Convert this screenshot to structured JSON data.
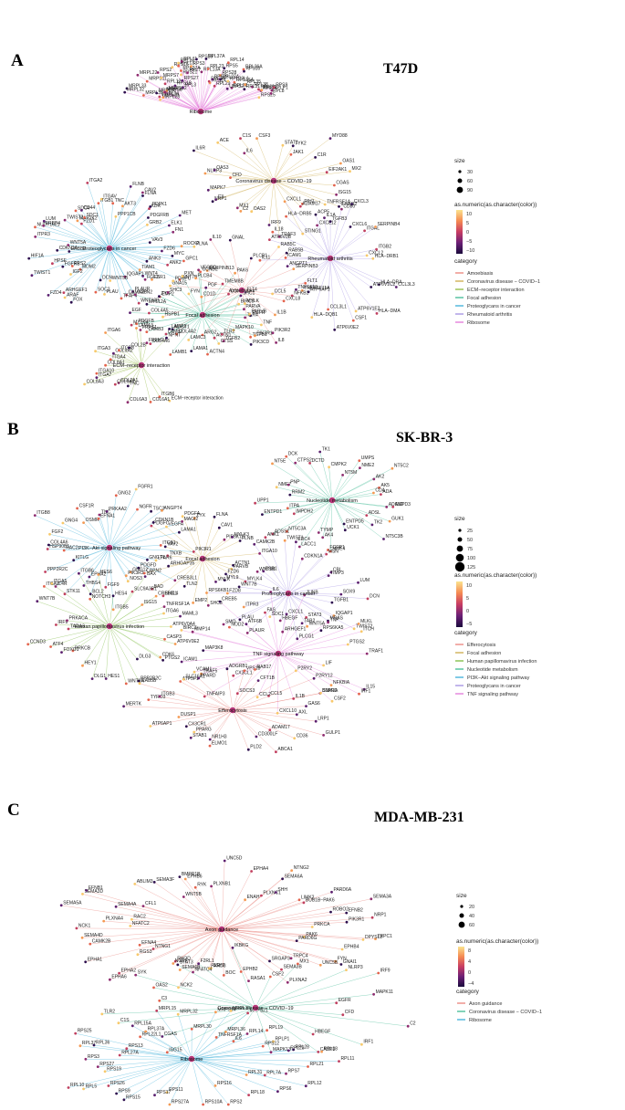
{
  "panels": [
    {
      "letter": "A",
      "title": "T47D",
      "legend": {
        "size_title": "size",
        "size_values": [
          "30",
          "60",
          "90"
        ],
        "color_title": "as.numeric(as.character(color))",
        "color_ticks": [
          "10",
          "5",
          "0",
          "−5",
          "−10"
        ],
        "category_title": "category",
        "categories": [
          {
            "label": "Amoebiasis",
            "color": "#e8776f"
          },
          {
            "label": "Coronavirus disease − COVID−1",
            "color": "#c8a43a"
          },
          {
            "label": "ECM−receptor interaction",
            "color": "#86b32d"
          },
          {
            "label": "Focal adhesion",
            "color": "#2fb58a"
          },
          {
            "label": "Proteoglycans in cancer",
            "color": "#2aa7d5"
          },
          {
            "label": "Rheumatoid arthritis",
            "color": "#9a86e0"
          },
          {
            "label": "Ribosome",
            "color": "#e06ad6"
          }
        ]
      },
      "hubs": [
        {
          "label": "Ribosome",
          "color": "#e06ad6",
          "genes": [
            "MRPL33",
            "MRPL32",
            "MRPL35",
            "MRPL23",
            "MRPL36",
            "RPS21",
            "MRPL30",
            "MRPS12",
            "MRPS6",
            "MRPS11",
            "MRPL3",
            "MRPL22",
            "MRPS7",
            "RPL12",
            "RPS2",
            "RPS18",
            "RPL3",
            "RPS16",
            "RPL13",
            "RPS21",
            "RPS27",
            "RPS27A",
            "RPL10",
            "RPL7",
            "RPL11",
            "RPL13A",
            "RPS3",
            "RPS19",
            "RPL23",
            "RPS14",
            "RPL37A",
            "RPS28",
            "RPL29",
            "RPL34",
            "RPS23",
            "RPS5",
            "RPL14",
            "RPL27A",
            "RPL22L1",
            "RPS15A",
            "RPL36A",
            "RPL32",
            "RPS10",
            "UBA52",
            "RPL38",
            "RPL35",
            "RPL31",
            "RPL30",
            "RPL24",
            "RPLP1",
            "RPL21",
            "RPS25",
            "RPL8",
            "RPS9"
          ]
        },
        {
          "label": "Coronavirus disease − COVID−19",
          "color": "#c8a43a",
          "genes": [
            "CGAS",
            "ISG15",
            "IFNAR2",
            "TNFRSF1A",
            "PIH1",
            "ADAM17",
            "STING1",
            "TRAF3",
            "IRF9",
            "OAS2",
            "C2",
            "MX1",
            "NRP1",
            "C3",
            "MAPK7",
            "CFD",
            "NLRP3",
            "OAS3",
            "IL6R",
            "ACE",
            "IL6",
            "C1S",
            "CSF3",
            "STAT1",
            "TYK2",
            "JAK1",
            "MYD88",
            "C1R",
            "OAS1",
            "EIF2AK1",
            "MX2"
          ]
        },
        {
          "label": "Proteoglycans in cancer",
          "color": "#2aa7d5",
          "genes": [
            "FZD6",
            "MYC",
            "GPC1",
            "ANK2",
            "ANK3",
            "WNT7B",
            "ESR1",
            "TIAM1",
            "WNT4",
            "FGF2",
            "WNT10B",
            "IQGAP1",
            "PLAUR",
            "CAMK2D",
            "TFAP4",
            "WNT5B",
            "PLAU",
            "DCN",
            "SOC2",
            "FOX",
            "ARAF",
            "ARHGEF1",
            "FZD4",
            "MDM2",
            "IGF2",
            "FRS2",
            "TWIST1",
            "FGFR1",
            "HPSE",
            "HIF1A",
            "ERBB3",
            "CDKN1A",
            "WNT5A",
            "ITPR3",
            "NUDT16L1",
            "ERBB4",
            "LUM",
            "TWIST2",
            "FZD1",
            "MAP2K2",
            "SDC1",
            "SDC4",
            "CD44",
            "ITGB1",
            "ITGA2",
            "ITGAV",
            "TNC",
            "PPP1CB",
            "FLNB",
            "AKT3",
            "CAV2",
            "FLNA",
            "KDR",
            "PDPK1",
            "PDGFRB",
            "GRB2",
            "ELK1",
            "MET",
            "FN1",
            "VAV3",
            "ROCK2",
            "PLNA"
          ]
        },
        {
          "label": "Rheumatoid arthritis",
          "color": "#9a86e0",
          "genes": [
            "HLA−DRB1",
            "CCL3L3",
            "HLA−DRA",
            "ATP6V1C2",
            "HLA−DMA",
            "ATP6V1E2",
            "CSF1",
            "ATP6V0E2",
            "CCL3L1",
            "HLA−DQB1",
            "ATP6AP1",
            "TNFRSF11A",
            "TNFSF13",
            "CCL5",
            "ANGPT1",
            "IL11",
            "ICAM1",
            "ATP6V0B",
            "IL18",
            "HLA−DRB5",
            "CXCL1",
            "CXCL12",
            "ACP5",
            "IL1A",
            "TGFB3",
            "CD80",
            "CXCL3",
            "CXCL6",
            "ITGAL",
            "SERPINB4",
            "ITGB2",
            "CXCL2"
          ]
        },
        {
          "label": "Amoebiasis",
          "color": "#e8776f",
          "genes": [
            "NFKB1",
            "CXCL8",
            "IL1B",
            "IL8",
            "TGFB1",
            "TGFB2",
            "ARG2",
            "ADCY1",
            "HSPB1",
            "CD1D",
            "GNA15",
            "PLCB4",
            "SERPINB13",
            "IL10",
            "GNAL",
            "PLCB1",
            "RAB5C",
            "RAB5B",
            "SERPINB3",
            "FLT1"
          ]
        },
        {
          "label": "Focal adhesion",
          "color": "#2fb58a",
          "genes": [
            "EGFR",
            "TLR4",
            "TNF",
            "PIK3R2",
            "PIK3R1",
            "MAPK10",
            "PIK3CD",
            "TLR2",
            "CTSS",
            "ACTN1",
            "ACTN4",
            "LAMA1",
            "LAMC3",
            "LAMB1",
            "COL4A2",
            "LAMB2",
            "COL4A6",
            "LAMA2",
            "LAMB3",
            "PDGFB",
            "MYLK4",
            "COL4A5",
            "EGF",
            "MYL12A",
            "CAPN2",
            "EMP2",
            "ZYX",
            "SHC3",
            "PDGFC",
            "PXN",
            "FYN",
            "VEGFC",
            "CCND2",
            "PGF",
            "TMEM8B",
            "PAK6",
            "CCND1",
            "FLT4",
            "SHC1",
            "BIRC3",
            "MYLK",
            "PARVA",
            "PARVB"
          ]
        },
        {
          "label": "ECM−receptor interaction",
          "color": "#86b32d",
          "genes": [
            "ECM−receptor interaction",
            "ITGB6",
            "COL6A1",
            "COL6A3",
            "TNC",
            "COL2A1",
            "COL6A2",
            "COL8A3",
            "ITGA7",
            "ITGA10",
            "COL8A1",
            "ITGA4",
            "ITGA3",
            "COL9A2",
            "ITGB8",
            "ITGA6",
            "COL2B",
            "LAMA3",
            "FRAS1",
            "FREM2",
            "NPNT"
          ]
        }
      ]
    },
    {
      "letter": "B",
      "title": "SK-BR-3",
      "legend": {
        "size_title": "size",
        "size_values": [
          "25",
          "50",
          "75",
          "100",
          "125"
        ],
        "color_title": "as.numeric(as.character(color))",
        "color_ticks": [
          "10",
          "5",
          "0",
          "−5"
        ],
        "category_title": "category",
        "categories": [
          {
            "label": "Efferocytosis",
            "color": "#e8776f"
          },
          {
            "label": "Focal adhesion",
            "color": "#c8a43a"
          },
          {
            "label": "Human papillomavirus infection",
            "color": "#6fb52d"
          },
          {
            "label": "Nucleotide metabolism",
            "color": "#2fb58a"
          },
          {
            "label": "PI3K−Akt signaling pathway",
            "color": "#2aa7d5"
          },
          {
            "label": "Proteoglycans in cancer",
            "color": "#9a86e0"
          },
          {
            "label": "TNF signaling pathway",
            "color": "#e06ad6"
          }
        ]
      },
      "hubs": [
        {
          "label": "Nucleotide metabolism",
          "color": "#2fb58a",
          "genes": [
            "ADSS2",
            "AMPD3",
            "GUK1",
            "ADSL",
            "TK2",
            "NT5C3B",
            "ENTPD5",
            "UCK1",
            "NME4",
            "AK4",
            "TYMP",
            "LACC1",
            "NT5C3A",
            "ADSS1",
            "IMPDH2",
            "ENTPD1",
            "ITPA",
            "UPP1",
            "RRM2",
            "NME7",
            "PNP",
            "NT5E",
            "DCK",
            "CTPS2",
            "DCTD",
            "TK1",
            "CMPK2",
            "NT5M",
            "UMPS",
            "NME2",
            "NT5C2",
            "AK2",
            "AK5",
            "CDA",
            "ADA"
          ]
        },
        {
          "label": "Focal adhesion",
          "color": "#c8a43a",
          "genes": [
            "ACTN1",
            "PARVB",
            "MYLK4",
            "MYL9",
            "MYLK",
            "SHC3",
            "EMP2",
            "TLN2",
            "SHC1",
            "BAD",
            "CAPN2",
            "ARHGAP35",
            "TNXB",
            "VAV2",
            "PDGFC",
            "VEGFA",
            "PDGFA",
            "ZYX",
            "FLNA",
            "CAV1",
            "PIP5K1B",
            "MYLK3",
            "FLNB",
            "ITGA10"
          ]
        },
        {
          "label": "PI3K−Akt signaling pathway",
          "color": "#2aa7d5",
          "genes": [
            "PIK3R1",
            "LPAR6",
            "GNGT1",
            "CREB3L1",
            "PDGFD",
            "GNG12",
            "NOS3",
            "PIK3R3",
            "ITGB5",
            "FGF9",
            "BCL2",
            "EPHA2",
            "THBS4",
            "STK11",
            "IL4R",
            "PPP2R2C",
            "KITLG",
            "RAC2",
            "HSP90B1",
            "COL4A6",
            "FGF2",
            "ITGB8",
            "GNG4",
            "OSMR",
            "CSF1R",
            "EFNA1",
            "TNC",
            "PRKAA2",
            "GNG2",
            "FGFR1",
            "NGFR",
            "TSC2",
            "ANGPT4",
            "CDKN1B",
            "MAGI2",
            "LAMA1",
            "ITGB1"
          ]
        },
        {
          "label": "Proteoglycans in cancer",
          "color": "#9a86e0",
          "genes": [
            "DCN",
            "TGFB1",
            "IQGAP1",
            "TWIST2",
            "MRAS",
            "STAT3",
            "WNT5A",
            "PLCG1",
            "ARHGEF1",
            "HBEGF",
            "SDC1",
            "PLAUR",
            "PLAU",
            "SMO",
            "ITPR3",
            "RPS6KB1",
            "FZD8",
            "WNT7B",
            "FZD6",
            "WNT5B",
            "ESR1",
            "CAMK2B",
            "ANK1",
            "TWIST1",
            "EDC4",
            "CDKN1A",
            "FGFR1",
            "MSN",
            "CBL",
            "TIMP3",
            "LUM",
            "SOX9"
          ]
        },
        {
          "label": "Human papillomavirus infection",
          "color": "#6fb52d",
          "genes": [
            "ATP6V0A4",
            "CASP3",
            "ATP6V0E2",
            "CDK6",
            "PTGS2",
            "DLG3",
            "PPP2R2C",
            "WNT9A",
            "HES1",
            "DLG1",
            "HEY1",
            "PRKCB",
            "FOXO1",
            "ATF4",
            "CCND3",
            "TADA3",
            "IRF9",
            "PRKACA",
            "WNT7B",
            "ITGA2",
            "ITGA5",
            "NOTCH3",
            "ITGB6",
            "HES6",
            "HES4",
            "SLC9A3R1",
            "BAX",
            "ISG15",
            "CREB3L4",
            "TNFRSF1A",
            "ITGA6",
            "MAML3"
          ]
        },
        {
          "label": "TNF signaling pathway",
          "color": "#e06ad6",
          "genes": [
            "TRAF1",
            "LIF",
            "IL15",
            "IRF1",
            "NFKBIA",
            "CSF2",
            "IL1B",
            "CXCL10",
            "CCL5",
            "CCL2",
            "SOCS3",
            "TNFAIP3",
            "CX3CL1",
            "TRAF5",
            "VCAM1",
            "ICAM1",
            "MAP3K8",
            "BIRC3",
            "MMP14",
            "NOD2",
            "CREB5",
            "ATF6B",
            "FAS",
            "IL6",
            "CXCL1",
            "JUNB",
            "TAB2",
            "TNF",
            "RPS6KA5",
            "MLKL",
            "ITCH",
            "PTGS2"
          ]
        },
        {
          "label": "Efferocytosis",
          "color": "#e8776f",
          "genes": [
            "AXL",
            "LRP1",
            "GULP1",
            "CD36",
            "ADAM17",
            "ABCA1",
            "CD300LF",
            "PLD2",
            "ELMO1",
            "NR1H3",
            "STAB1",
            "PPARG",
            "CX3CR1",
            "ATP6AP1",
            "DUSP1",
            "MERTK",
            "TYRO3",
            "ITGB3",
            "RAB5B",
            "ATP5F1",
            "SLC16A1",
            "PPARD",
            "ADGRB1",
            "VPS18",
            "RAB17",
            "CFT1B",
            "P2RY2",
            "P2RY12",
            "DNM3A",
            "S1PR1",
            "GAS6"
          ]
        }
      ]
    },
    {
      "letter": "C",
      "title": "MDA-MB-231",
      "legend": {
        "size_title": "size",
        "size_values": [
          "20",
          "40",
          "60"
        ],
        "color_title": "as.numeric(as.character(color))",
        "color_ticks": [
          "8",
          "4",
          "0",
          "−4"
        ],
        "category_title": "category",
        "categories": [
          {
            "label": "Axon guidance",
            "color": "#e8776f"
          },
          {
            "label": "Coronavirus disease − COVID−1",
            "color": "#2fb58a"
          },
          {
            "label": "Ribosome",
            "color": "#2aa7d5"
          }
        ]
      },
      "hubs": [
        {
          "label": "Axon guidance",
          "color": "#e8776f",
          "genes": [
            "TRPC1",
            "PAK6",
            "DPYSL2",
            "PARD6G",
            "EPHB4",
            "FYN",
            "GNAI1",
            "TRPC4",
            "UNC5B",
            "SRGAP3",
            "SEMA3B",
            "PLXNA2",
            "RASA1",
            "EPHB2",
            "BOC",
            "PARD3",
            "SSH2",
            "NCK2",
            "NFATC4",
            "SEMA6B",
            "RHOD",
            "NGEF",
            "EPHA6",
            "EPHA2",
            "NTNG1",
            "RGS3",
            "EPHA1",
            "EFNA4",
            "CAMK2B",
            "SEMA4D",
            "NCK1",
            "NFATC2",
            "PLXNA4",
            "SEMA5A",
            "RAC2",
            "SEMA4A",
            "CFL1",
            "SEMA3D",
            "EFNB1",
            "ABLIM3",
            "SEMA3F",
            "WNT5B",
            "BMPR1B",
            "EPHB6",
            "RYK",
            "PLXNB1",
            "UNC5D",
            "EPHA4",
            "ENAH",
            "PLXNC1",
            "SEMA6A",
            "NTNG2",
            "SHH",
            "LIMK2",
            "BUB1B−PAK6",
            "PARD6A",
            "SEMA3A",
            "ROBO2",
            "EFNB2",
            "NRP1",
            "PIK3R1",
            "PRKCA"
          ]
        },
        {
          "label": "Coronavirus disease − COVID−19",
          "color": "#2fb58a",
          "genes": [
            "CFD",
            "C2",
            "IRF1",
            "HBEGF",
            "CASP1",
            "MAPK13",
            "IL6",
            "TNFRSF1A",
            "ISG15",
            "CGAS",
            "C1S",
            "TLR2",
            "C3",
            "OAS2",
            "SYK",
            "STAT3",
            "F2RL1",
            "IKBKG",
            "CSF2",
            "MX1",
            "NLRP3",
            "IRF9",
            "MAPK11",
            "EGFR"
          ]
        },
        {
          "label": "Ribosome",
          "color": "#2aa7d5",
          "genes": [
            "RPL11",
            "RPL21",
            "RPS7",
            "RPL12",
            "RPL7A",
            "RPL31",
            "RPS6",
            "RPL18",
            "RPS16",
            "RPS2",
            "RPS10A",
            "RPS27A",
            "RPS11",
            "RPS17",
            "RPS15",
            "RPS9",
            "RPS26",
            "RPL5",
            "RPL10",
            "RPS19",
            "RPS27",
            "RPS3",
            "RPL27A",
            "RPL37",
            "RPL36",
            "RPS13",
            "RPS25",
            "RPL22L1",
            "RPL15A",
            "RPL37A",
            "MRPL15",
            "MRPL32",
            "MRPL30",
            "MRPS14",
            "MRPL3",
            "MRPS21",
            "MRPL36",
            "RPL14",
            "RPL19",
            "RPLP1",
            "RPS12",
            "RPL23",
            "RPL28",
            "RPL38"
          ]
        }
      ]
    }
  ]
}
